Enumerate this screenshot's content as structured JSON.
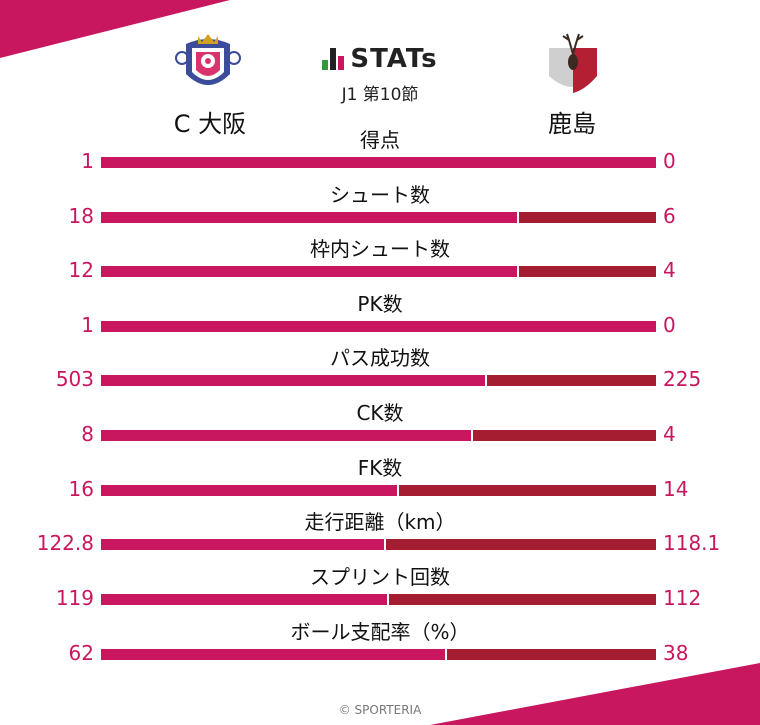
{
  "header": {
    "logo_text": "STATs",
    "subtitle": "J1 第10節",
    "home_team": "C 大阪",
    "away_team": "鹿島"
  },
  "colors": {
    "home": "#c8175f",
    "away": "#a51d31"
  },
  "stats": [
    {
      "label": "得点",
      "home": "1",
      "away": "0",
      "home_share": 1.0
    },
    {
      "label": "シュート数",
      "home": "18",
      "away": "6",
      "home_share": 0.75
    },
    {
      "label": "枠内シュート数",
      "home": "12",
      "away": "4",
      "home_share": 0.75
    },
    {
      "label": "PK数",
      "home": "1",
      "away": "0",
      "home_share": 1.0
    },
    {
      "label": "パス成功数",
      "home": "503",
      "away": "225",
      "home_share": 0.691
    },
    {
      "label": "CK数",
      "home": "8",
      "away": "4",
      "home_share": 0.667
    },
    {
      "label": "FK数",
      "home": "16",
      "away": "14",
      "home_share": 0.533
    },
    {
      "label": "走行距離（km）",
      "home": "122.8",
      "away": "118.1",
      "home_share": 0.51
    },
    {
      "label": "スプリント回数",
      "home": "119",
      "away": "112",
      "home_share": 0.515
    },
    {
      "label": "ボール支配率（%）",
      "home": "62",
      "away": "38",
      "home_share": 0.62
    }
  ],
  "footer": {
    "credit": "© SPORTERIA"
  }
}
